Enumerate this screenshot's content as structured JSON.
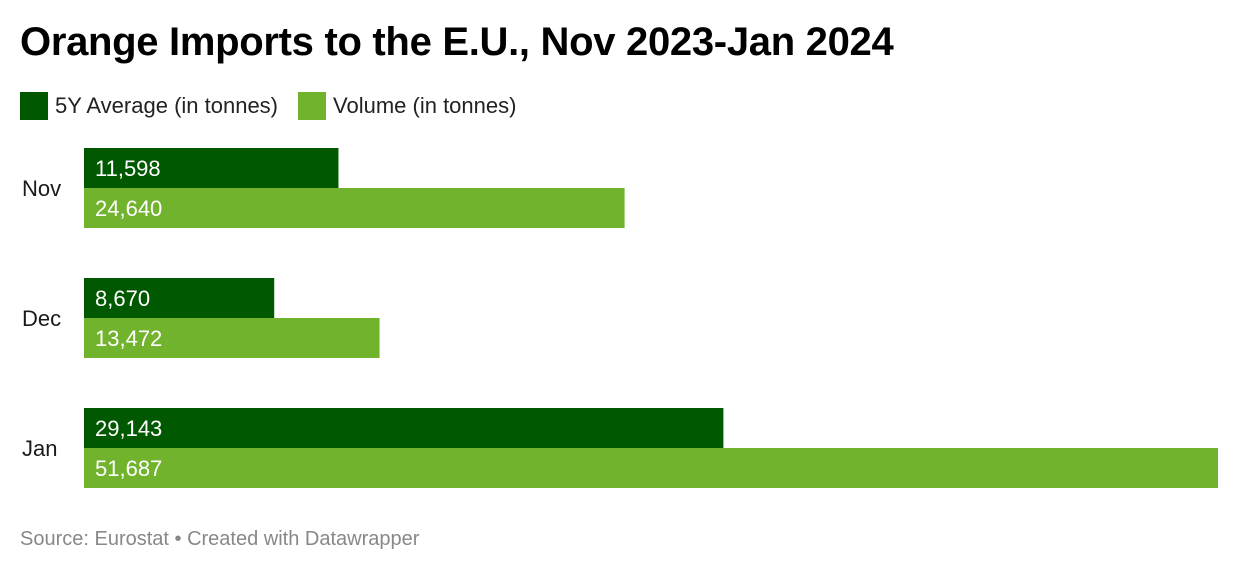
{
  "title": "Orange Imports to the E.U., Nov 2023-Jan 2024",
  "source": "Source: Eurostat • Created with Datawrapper",
  "colors": {
    "avg": "#005800",
    "volume": "#72b32e"
  },
  "chart_data": {
    "type": "bar",
    "orientation": "horizontal",
    "title": "Orange Imports to the E.U., Nov 2023-Jan 2024",
    "categories": [
      "Nov",
      "Dec",
      "Jan"
    ],
    "series": [
      {
        "name": "5Y Average (in tonnes)",
        "values": [
          11598,
          8670,
          29143
        ],
        "labels": [
          "11,598",
          "8,670",
          "29,143"
        ]
      },
      {
        "name": "Volume (in tonnes)",
        "values": [
          24640,
          13472,
          51687
        ],
        "labels": [
          "24,640",
          "13,472",
          "51,687"
        ]
      }
    ],
    "xlim": [
      0,
      51687
    ],
    "legend_position": "top-left",
    "grid": false
  }
}
